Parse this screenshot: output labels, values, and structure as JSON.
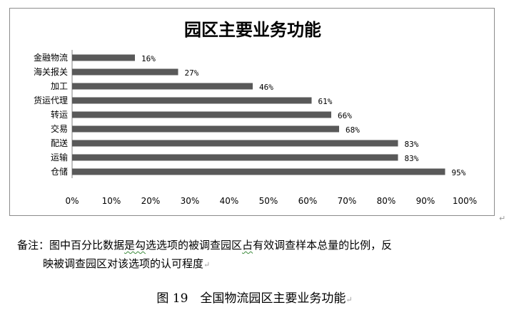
{
  "chart_data": {
    "type": "bar",
    "orientation": "horizontal",
    "title": "园区主要业务功能",
    "categories": [
      "金融物流",
      "海关报关",
      "加工",
      "货运代理",
      "转运",
      "交易",
      "配送",
      "运输",
      "仓储"
    ],
    "values": [
      16,
      27,
      46,
      61,
      66,
      68,
      83,
      83,
      95
    ],
    "value_labels": [
      "16%",
      "27%",
      "46%",
      "61%",
      "66%",
      "68%",
      "83%",
      "83%",
      "95%"
    ],
    "x_ticks": [
      "0%",
      "10%",
      "20%",
      "30%",
      "40%",
      "50%",
      "60%",
      "70%",
      "80%",
      "90%",
      "100%"
    ],
    "xlim": [
      0,
      100
    ],
    "grid": false,
    "bar_color": "#595959"
  },
  "note": {
    "label": "备注：",
    "seg1": "图中百分比数据",
    "seg2": "是勾",
    "seg3": "选选项的被调查园区",
    "seg4": "占",
    "seg5": "有效调查样本总量的比例，反",
    "line2": "映被调查园区对该选项的认可程度",
    "return_mark": "↵"
  },
  "caption": {
    "text": "图 19　全国物流园区主要业务功能",
    "return_mark": "↵"
  },
  "corner_mark": "↵"
}
